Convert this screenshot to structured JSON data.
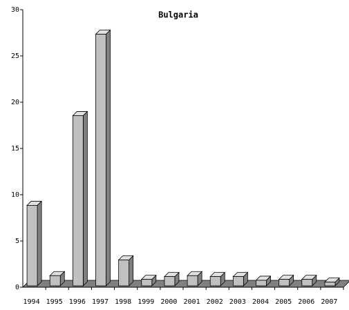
{
  "chart_data": {
    "type": "bar3d",
    "title": "Bulgaria",
    "categories": [
      "1994",
      "1995",
      "1996",
      "1997",
      "1998",
      "1999",
      "2000",
      "2001",
      "2002",
      "2003",
      "2004",
      "2005",
      "2006",
      "2007"
    ],
    "values": [
      8.7,
      1.1,
      18.4,
      27.2,
      2.8,
      0.7,
      1.0,
      1.1,
      1.0,
      1.0,
      0.6,
      0.7,
      0.7,
      0.4
    ],
    "color": "#c0c0c0",
    "ylim": [
      0,
      30
    ],
    "yticks": [
      0,
      5,
      10,
      15,
      20,
      25,
      30
    ]
  }
}
